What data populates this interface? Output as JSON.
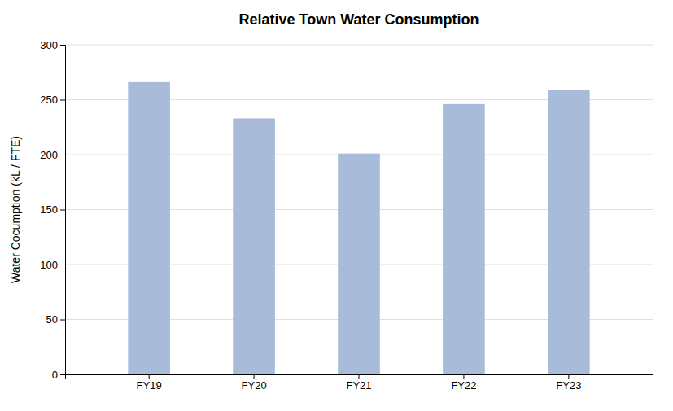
{
  "chart_data": {
    "type": "bar",
    "title": "Relative Town Water Consumption",
    "categories": [
      "FY19",
      "FY20",
      "FY21",
      "FY22",
      "FY23"
    ],
    "values": [
      266,
      233,
      201,
      246,
      259
    ],
    "color": "#a8bbd8",
    "ylabel": "Water Cocumption (kL / FTE)",
    "ylim": [
      0,
      300
    ],
    "yticks": [
      0,
      50,
      100,
      150,
      200,
      250,
      300
    ],
    "grid": true
  }
}
